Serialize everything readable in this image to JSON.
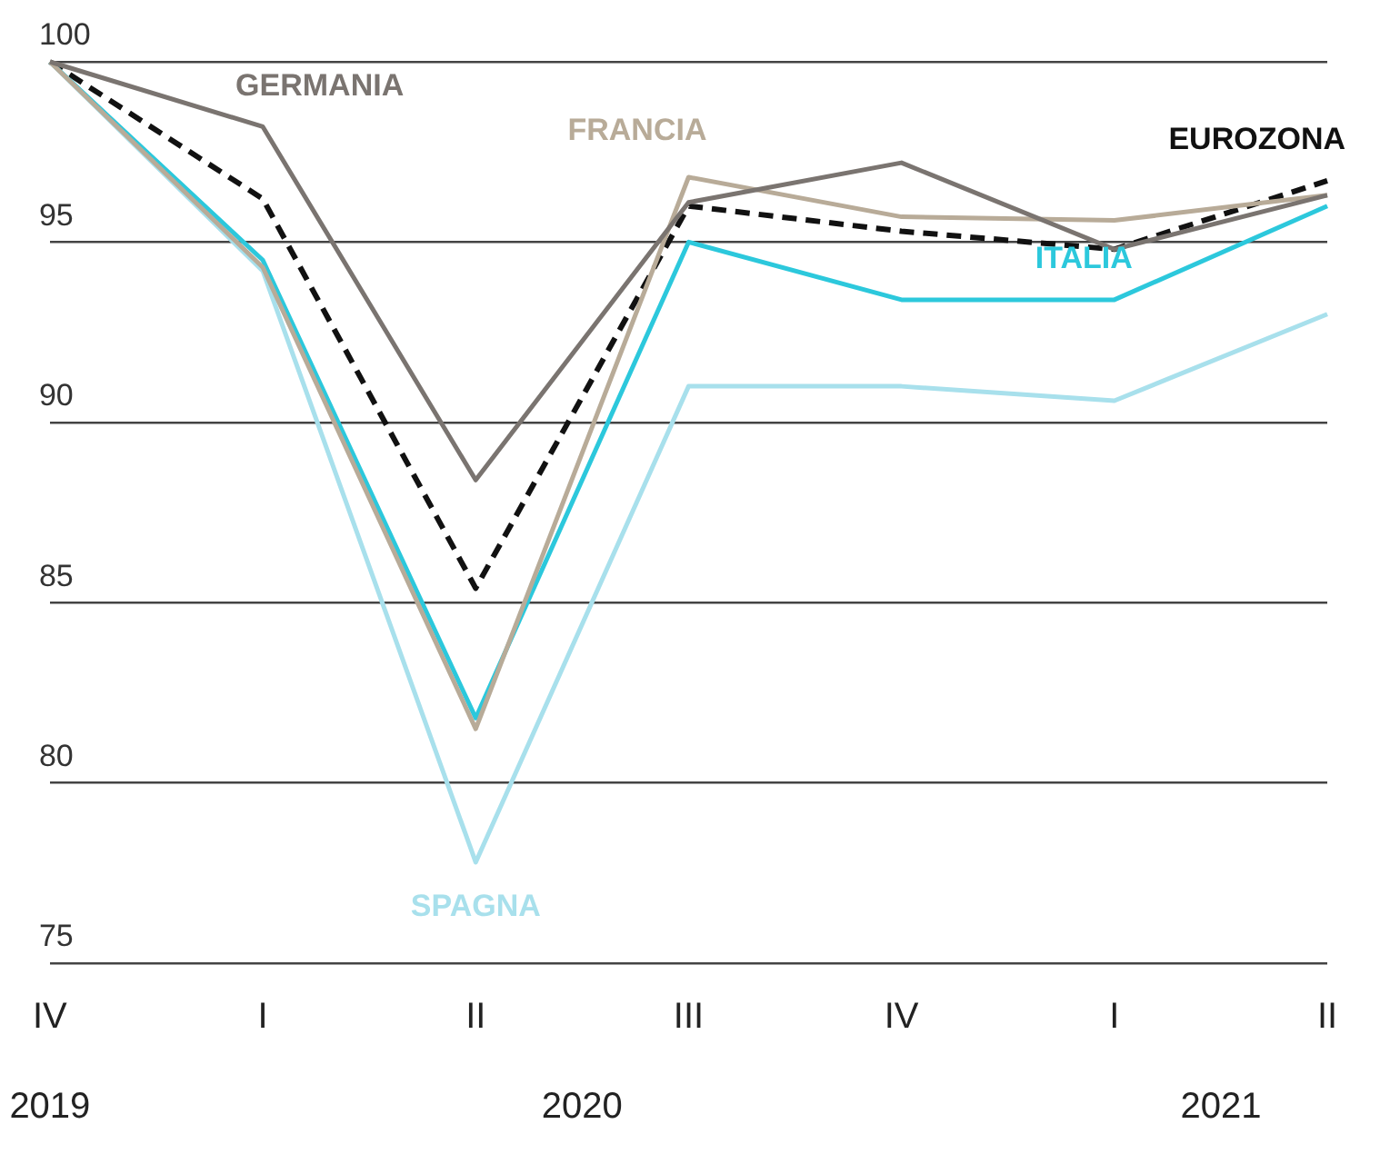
{
  "chart_data": {
    "type": "line",
    "categories": [
      "IV",
      "I",
      "II",
      "III",
      "IV",
      "I",
      "II"
    ],
    "series": [
      {
        "name": "GERMANIA",
        "color": "#7a7470",
        "values": [
          100,
          98.2,
          88.4,
          96.1,
          97.2,
          94.8,
          96.3
        ]
      },
      {
        "name": "FRANCIA",
        "color": "#b8ab98",
        "values": [
          100,
          94.3,
          81.5,
          96.8,
          95.7,
          95.6,
          96.3
        ]
      },
      {
        "name": "SPAGNA",
        "color": "#a8e0ec",
        "values": [
          100,
          94.2,
          77.8,
          91.0,
          91.0,
          90.6,
          93.0
        ]
      },
      {
        "name": "ITALIA",
        "color": "#2cc8dc",
        "values": [
          100,
          94.5,
          81.8,
          95.0,
          93.4,
          93.4,
          96.0
        ]
      },
      {
        "name": "EUROZONA",
        "color": "#111111",
        "values": [
          100,
          96.2,
          85.4,
          96.0,
          95.3,
          94.8,
          96.7
        ],
        "line_style": "dashed"
      }
    ],
    "ylim": [
      75,
      100
    ],
    "yticks": [
      75,
      80,
      85,
      90,
      95,
      100
    ],
    "grid": "y",
    "legend": false,
    "marker": "none",
    "annotations": [
      "2019",
      "2020",
      "2021"
    ]
  }
}
